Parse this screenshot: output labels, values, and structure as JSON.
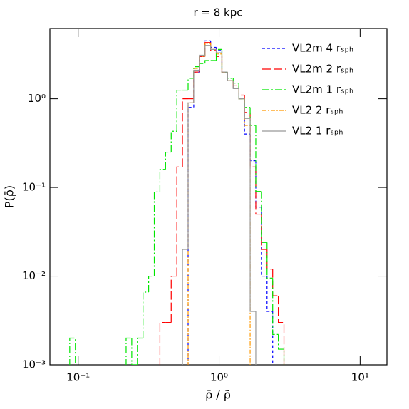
{
  "chart_data": {
    "type": "step-histogram",
    "title": "r = 8 kpc",
    "xlabel": "ρ̄ / ρ̃",
    "ylabel": "P(ρ̄)",
    "xscale": "log",
    "yscale": "log",
    "xlim": [
      0.063,
      15.5
    ],
    "ylim": [
      0.001,
      6.2
    ],
    "xticks": [
      {
        "value": 0.1,
        "label": "10⁻¹"
      },
      {
        "value": 1,
        "label": "10⁰"
      },
      {
        "value": 10,
        "label": "10¹"
      }
    ],
    "yticks": [
      {
        "value": 0.001,
        "label": "10⁻³"
      },
      {
        "value": 0.01,
        "label": "10⁻²"
      },
      {
        "value": 0.1,
        "label": "10⁻¹"
      },
      {
        "value": 1,
        "label": "10⁰"
      }
    ],
    "legend": "upper right",
    "bins": [
      0.0871,
      0.0955,
      0.1047,
      0.1148,
      0.1259,
      0.138,
      0.1514,
      0.166,
      0.182,
      0.1995,
      0.2188,
      0.2399,
      0.263,
      0.2884,
      0.3162,
      0.3467,
      0.3802,
      0.4169,
      0.4571,
      0.5012,
      0.5495,
      0.6026,
      0.6607,
      0.7244,
      0.7943,
      0.871,
      0.955,
      1.047,
      1.148,
      1.259,
      1.38,
      1.514,
      1.66,
      1.82,
      1.995,
      2.188,
      2.399,
      2.63,
      2.884,
      3.162,
      3.467,
      3.802,
      4.169,
      4.571,
      5.012
    ],
    "series": [
      {
        "name": "VL2m 4 rₛₚₕ",
        "color": "#0000ff",
        "dash": "4,3",
        "values": [
          null,
          null,
          null,
          null,
          null,
          null,
          null,
          null,
          null,
          null,
          null,
          null,
          null,
          null,
          null,
          null,
          null,
          null,
          null,
          null,
          null,
          0.8,
          2.0,
          3.0,
          4.5,
          3.8,
          3.5,
          2.0,
          1.6,
          1.3,
          1.0,
          0.4,
          0.2,
          0.06,
          0.01,
          0.004,
          null,
          null,
          null,
          null,
          null,
          null,
          null,
          null
        ]
      },
      {
        "name": "VL2m 2 rₛₚₕ",
        "color": "#ff0000",
        "dash": "12,4",
        "values": [
          null,
          null,
          null,
          null,
          null,
          null,
          null,
          null,
          null,
          null,
          null,
          null,
          null,
          null,
          null,
          null,
          0.003,
          0.003,
          0.01,
          0.17,
          1.0,
          1.0,
          2.0,
          3.0,
          4.3,
          3.5,
          3.0,
          2.0,
          1.6,
          1.4,
          1.1,
          0.7,
          0.17,
          0.05,
          0.02,
          0.012,
          0.006,
          0.003,
          null,
          null,
          null,
          null,
          null,
          null
        ]
      },
      {
        "name": "VL2m 1 rₛₚₕ",
        "color": "#00e600",
        "dash": "10,3,2,3",
        "values": [
          0.002,
          null,
          null,
          null,
          null,
          null,
          null,
          null,
          null,
          null,
          0.002,
          0.001,
          0.002,
          0.0066,
          0.01,
          0.089,
          0.16,
          0.25,
          0.43,
          1.25,
          1.25,
          1.7,
          2.3,
          2.5,
          2.7,
          2.7,
          3.6,
          2.0,
          1.7,
          1.5,
          1.0,
          0.8,
          0.5,
          0.09,
          0.024,
          0.0095,
          0.0022,
          0.0015,
          null,
          null,
          null,
          null,
          null,
          null
        ]
      },
      {
        "name": "VL2 2 rₛₚₕ",
        "color": "#ff9900",
        "dash": "6,2,2,2",
        "values": [
          null,
          null,
          null,
          null,
          null,
          null,
          null,
          null,
          null,
          null,
          null,
          null,
          null,
          null,
          null,
          null,
          null,
          null,
          null,
          null,
          null,
          0.9,
          2.2,
          3.0,
          4.2,
          3.6,
          3.2,
          2.0,
          1.6,
          1.3,
          1.0,
          0.5,
          null,
          null,
          null,
          null,
          null,
          null,
          null,
          null,
          null,
          null,
          null,
          null
        ]
      },
      {
        "name": "VL2 1 rₛₚₕ",
        "color": "#999999",
        "dash": "none",
        "values": [
          null,
          null,
          null,
          null,
          null,
          null,
          null,
          null,
          null,
          null,
          null,
          null,
          null,
          null,
          null,
          null,
          null,
          null,
          null,
          null,
          0.02,
          0.9,
          2.1,
          3.1,
          4.0,
          3.6,
          3.3,
          2.0,
          1.6,
          1.3,
          1.0,
          0.6,
          0.004,
          null,
          null,
          null,
          null,
          null,
          null,
          null,
          null,
          null,
          null,
          null
        ]
      }
    ]
  }
}
